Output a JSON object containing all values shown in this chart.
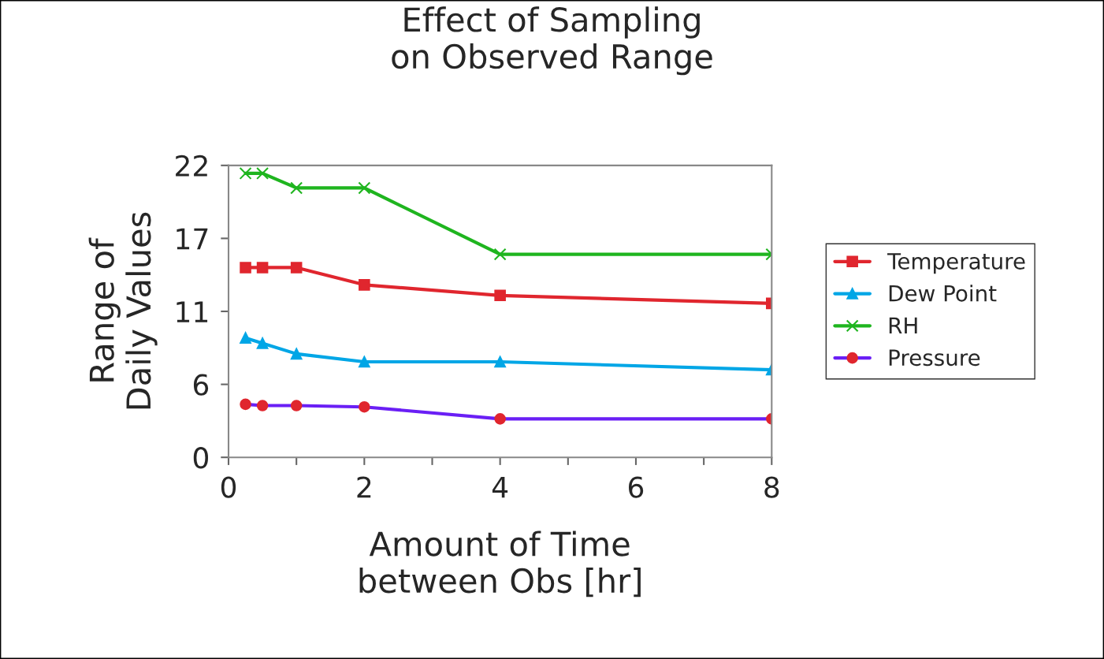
{
  "chart_data": {
    "type": "line",
    "title": "Effect of Sampling\non Observed Range",
    "xlabel": "Amount of Time\nbetween Obs [hr]",
    "ylabel": "Range of\nDaily Values",
    "x": [
      0.25,
      0.5,
      1,
      2,
      4,
      8
    ],
    "series": [
      {
        "name": "Temperature",
        "color": "#e0262e",
        "marker": "square",
        "values": [
          14.3,
          14.3,
          14.3,
          13.0,
          12.2,
          11.6
        ]
      },
      {
        "name": "Dew Point",
        "color": "#00a6e6",
        "marker": "triangle",
        "values": [
          9.0,
          8.6,
          7.8,
          7.2,
          7.2,
          6.6
        ]
      },
      {
        "name": "RH",
        "color": "#1fb51f",
        "marker": "cross",
        "values": [
          21.4,
          21.4,
          20.3,
          20.3,
          15.3,
          15.3
        ]
      },
      {
        "name": "Pressure",
        "color": "#6a1ff5",
        "colors": [
          "#e0262e",
          "#e0262e",
          "#e0262e",
          "#e0262e",
          "#e0262e",
          "#e0262e"
        ],
        "marker": "circle",
        "values": [
          4.0,
          3.9,
          3.9,
          3.8,
          2.9,
          2.9
        ]
      }
    ],
    "xlim": [
      0,
      8
    ],
    "xticks": [
      0,
      {
        "value": 1,
        "label": null
      },
      2,
      {
        "value": 3,
        "label": null
      },
      4,
      {
        "value": 5,
        "label": null
      },
      6,
      {
        "value": 7,
        "label": null
      },
      8
    ],
    "ylim": [
      0,
      22
    ],
    "yticks": [
      0,
      {
        "value": 5.5,
        "label": "6"
      },
      11,
      {
        "value": 16.5,
        "label": "17"
      },
      22
    ],
    "grid": false,
    "legend": "right"
  }
}
